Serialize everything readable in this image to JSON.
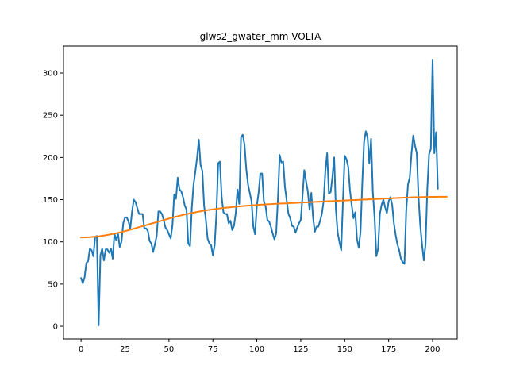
{
  "chart_data": {
    "type": "line",
    "title": "glws2_gwater_mm VOLTA",
    "xlabel": "",
    "ylabel": "",
    "xlim": [
      -10,
      214
    ],
    "ylim": [
      -15,
      332
    ],
    "xticks": [
      0,
      25,
      50,
      75,
      100,
      125,
      150,
      175,
      200
    ],
    "yticks": [
      0,
      50,
      100,
      150,
      200,
      250,
      300
    ],
    "grid": false,
    "colors": {
      "series1": "#1f77b4",
      "series2": "#ff7f0e"
    },
    "series": [
      {
        "values": [
          57,
          51,
          58,
          75,
          77,
          92,
          90,
          83,
          106,
          107,
          1,
          84,
          92,
          78,
          91,
          91,
          87,
          92,
          80,
          110,
          102,
          110,
          94,
          100,
          122,
          129,
          129,
          124,
          116,
          136,
          150,
          147,
          140,
          133,
          133,
          133,
          116,
          116,
          113,
          101,
          98,
          88,
          97,
          107,
          136,
          136,
          133,
          126,
          117,
          114,
          109,
          104,
          120,
          156,
          151,
          176,
          162,
          160,
          153,
          143,
          138,
          98,
          95,
          140,
          168,
          183,
          200,
          221,
          191,
          184,
          143,
          126,
          104,
          98,
          96,
          84,
          96,
          133,
          193,
          195,
          153,
          135,
          133,
          133,
          122,
          125,
          114,
          119,
          134,
          162,
          145,
          224,
          227,
          215,
          186,
          168,
          158,
          148,
          118,
          109,
          143,
          158,
          181,
          181,
          148,
          142,
          126,
          124,
          118,
          110,
          103,
          110,
          151,
          203,
          194,
          195,
          165,
          149,
          133,
          128,
          119,
          118,
          111,
          117,
          122,
          126,
          154,
          185,
          172,
          160,
          138,
          158,
          129,
          112,
          118,
          118,
          125,
          133,
          148,
          184,
          205,
          157,
          159,
          177,
          200,
          138,
          111,
          100,
          90,
          148,
          202,
          198,
          189,
          161,
          143,
          128,
          135,
          103,
          93,
          112,
          170,
          218,
          231,
          224,
          193,
          222,
          159,
          129,
          83,
          92,
          133,
          144,
          150,
          141,
          134,
          148,
          153,
          144,
          122,
          108,
          97,
          90,
          80,
          76,
          74,
          137,
          168,
          176,
          205,
          226,
          214,
          205,
          153,
          119,
          97,
          78,
          97,
          163,
          204,
          210,
          316,
          205,
          230,
          163
        ]
      },
      {
        "values": [
          105.3,
          105.3,
          105.4,
          105.4,
          105.5,
          105.6,
          105.8,
          106.0,
          106.2,
          106.4,
          106.6,
          106.9,
          107.2,
          107.5,
          107.8,
          108.2,
          108.6,
          109.0,
          109.4,
          109.8,
          110.2,
          110.7,
          111.2,
          111.7,
          112.2,
          112.7,
          113.3,
          113.8,
          114.4,
          115.0,
          115.6,
          116.2,
          116.8,
          117.4,
          118.0,
          118.6,
          119.2,
          119.8,
          120.4,
          121.0,
          121.6,
          122.2,
          122.8,
          123.4,
          124.0,
          124.6,
          125.2,
          125.8,
          126.4,
          127.0,
          127.6,
          128.1,
          128.7,
          129.3,
          129.8,
          130.3,
          130.9,
          131.4,
          131.9,
          132.4,
          132.8,
          133.3,
          133.8,
          134.2,
          134.6,
          135.0,
          135.4,
          135.8,
          136.2,
          136.6,
          136.9,
          137.3,
          137.6,
          137.9,
          138.2,
          138.5,
          138.8,
          139.1,
          139.4,
          139.6,
          139.9,
          140.1,
          140.4,
          140.6,
          140.8,
          141.0,
          141.2,
          141.4,
          141.6,
          141.8,
          142.0,
          142.2,
          142.4,
          142.6,
          142.7,
          142.9,
          143.1,
          143.2,
          143.4,
          143.5,
          143.7,
          143.8,
          144.0,
          144.1,
          144.2,
          144.4,
          144.5,
          144.6,
          144.7,
          144.9,
          145.0,
          145.1,
          145.2,
          145.3,
          145.4,
          145.5,
          145.6,
          145.7,
          145.8,
          145.9,
          146.0,
          146.1,
          146.2,
          146.3,
          146.4,
          146.5,
          146.6,
          146.7,
          146.8,
          146.9,
          147.0,
          147.1,
          147.2,
          147.3,
          147.4,
          147.5,
          147.6,
          147.7,
          147.8,
          147.9,
          148.0,
          148.1,
          148.2,
          148.3,
          148.4,
          148.5,
          148.6,
          148.7,
          148.8,
          148.9,
          149.0,
          149.1,
          149.2,
          149.3,
          149.4,
          149.5,
          149.6,
          149.7,
          149.8,
          149.9,
          150.0,
          150.1,
          150.2,
          150.3,
          150.4,
          150.5,
          150.6,
          150.7,
          150.8,
          150.9,
          151.0,
          151.1,
          151.2,
          151.3,
          151.4,
          151.5,
          151.6,
          151.7,
          151.8,
          151.9,
          152.0,
          152.1,
          152.2,
          152.3,
          152.4,
          152.5,
          152.5,
          152.6,
          152.7,
          152.8,
          152.8,
          152.9,
          153.0,
          153.0,
          153.1,
          153.1,
          153.2,
          153.2,
          153.2,
          153.3,
          153.3,
          153.3,
          153.3,
          153.4,
          153.4,
          153.4,
          153.4,
          153.4,
          153.4
        ]
      }
    ]
  }
}
